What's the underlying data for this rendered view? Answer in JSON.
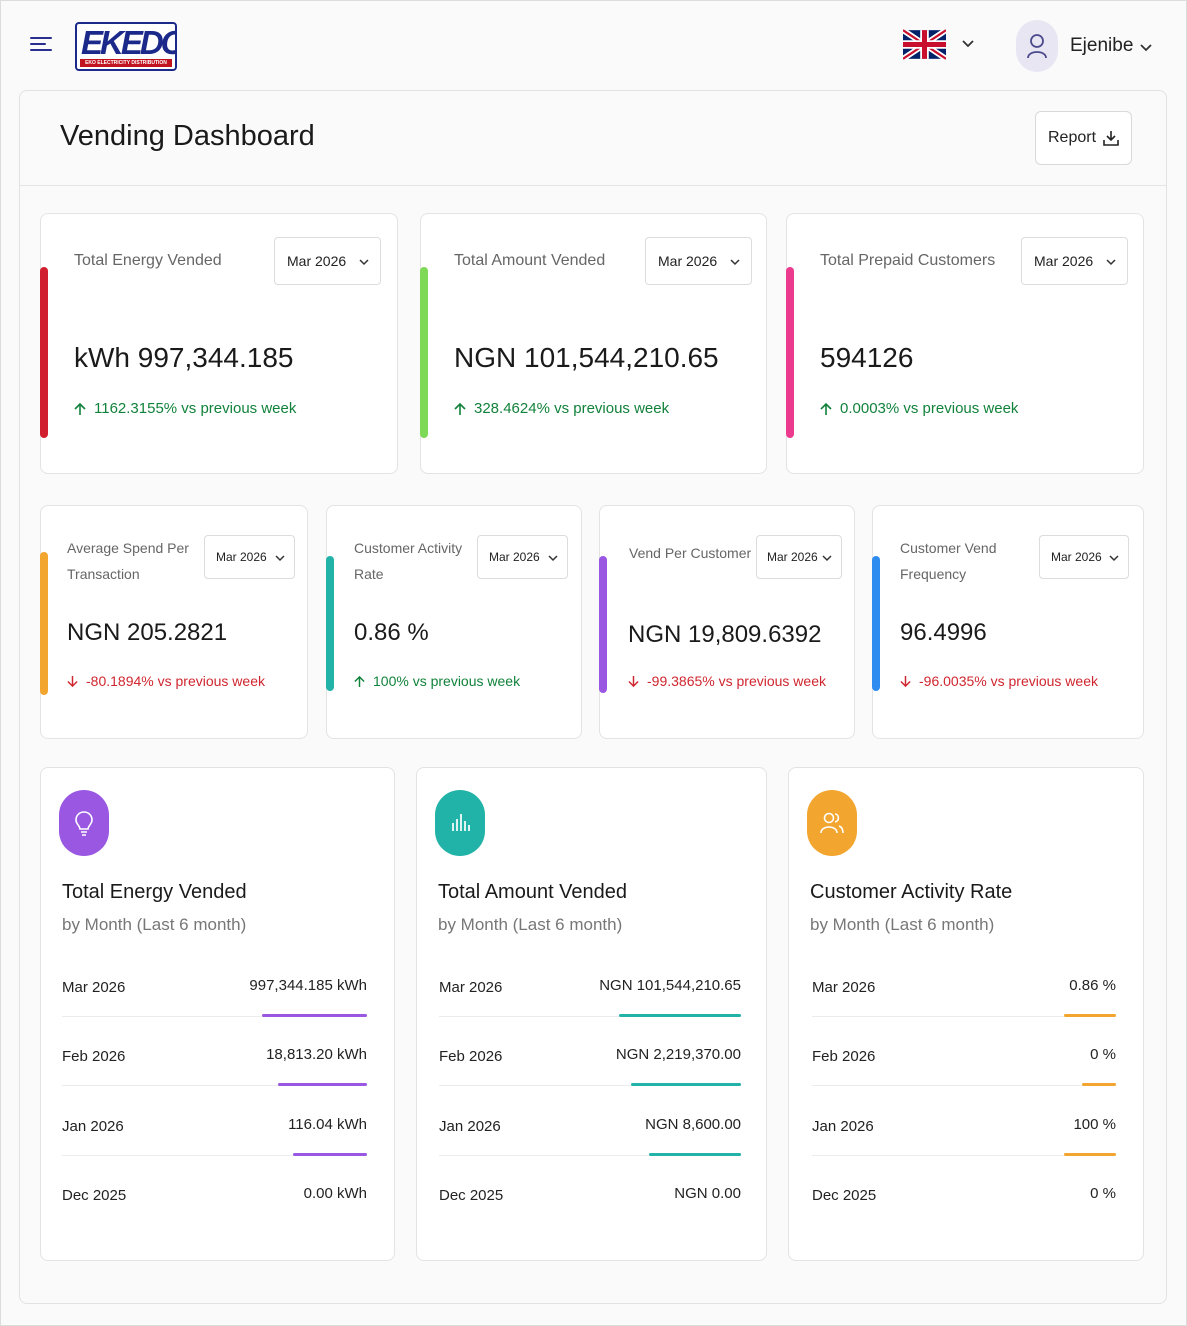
{
  "topbar": {
    "logo_text": "EKEDC",
    "logo_subtext": "EKO ELECTRICITY DISTRIBUTION PLC",
    "user_name": "Ejenibe",
    "language_flag": "uk-flag-icon"
  },
  "page": {
    "title": "Vending Dashboard",
    "report_label": "Report"
  },
  "top_cards": [
    {
      "label": "Total Energy Vended",
      "period": "Mar 2026",
      "value": "kWh 997,344.185",
      "delta": "1162.3155% vs previous week",
      "direction": "up",
      "accent": "#d01f2e"
    },
    {
      "label": "Total Amount Vended",
      "period": "Mar 2026",
      "value": "NGN 101,544,210.65",
      "delta": "328.4624% vs previous week",
      "direction": "up",
      "accent": "#7ed957"
    },
    {
      "label": "Total Prepaid Customers",
      "period": "Mar 2026",
      "value": "594126",
      "delta": "0.0003% vs previous week",
      "direction": "up",
      "accent": "#ec3b8e"
    }
  ],
  "mid_cards": [
    {
      "label_line1": "Average Spend Per",
      "label_line2": "Transaction",
      "period": "Mar 2026",
      "value": "NGN 205.2821",
      "delta": "-80.1894% vs previous week",
      "direction": "down",
      "accent": "#f2a52f"
    },
    {
      "label_line1": "Customer Activity",
      "label_line2": "Rate",
      "period": "Mar 2026",
      "value": "0.86 %",
      "delta": "100% vs previous week",
      "direction": "up",
      "accent": "#21b3a8"
    },
    {
      "label_line1": "Vend Per Customer",
      "label_line2": "",
      "period": "Mar 2026",
      "value": "NGN 19,809.6392",
      "delta": "-99.3865% vs previous week",
      "direction": "down",
      "accent": "#9a58e2"
    },
    {
      "label_line1": "Customer Vend",
      "label_line2": "Frequency",
      "period": "Mar 2026",
      "value": "96.4996",
      "delta": "-96.0035% vs previous week",
      "direction": "down",
      "accent": "#2e8cf0"
    }
  ],
  "breakdowns": [
    {
      "title": "Total Energy Vended",
      "subtitle": "by Month (Last 6 month)",
      "icon": "lightbulb-icon",
      "color": "#9a58e2",
      "rows": [
        {
          "month": "Mar 2026",
          "value": "997,344.185 kWh",
          "bar_fraction": 1.0
        },
        {
          "month": "Feb 2026",
          "value": "18,813.20 kWh",
          "bar_fraction": 0.85
        },
        {
          "month": "Jan 2026",
          "value": "116.04 kWh",
          "bar_fraction": 0.7
        },
        {
          "month": "Dec 2025",
          "value": "0.00 kWh",
          "bar_fraction": 0
        }
      ]
    },
    {
      "title": "Total Amount Vended",
      "subtitle": "by Month (Last 6 month)",
      "icon": "bar-chart-icon",
      "color": "#21b3a8",
      "rows": [
        {
          "month": "Mar 2026",
          "value": "NGN 101,544,210.65",
          "bar_fraction": 1.0
        },
        {
          "month": "Feb 2026",
          "value": "NGN 2,219,370.00",
          "bar_fraction": 0.9
        },
        {
          "month": "Jan 2026",
          "value": "NGN 8,600.00",
          "bar_fraction": 0.75
        },
        {
          "month": "Dec 2025",
          "value": "NGN 0.00",
          "bar_fraction": 0
        }
      ]
    },
    {
      "title": "Customer Activity Rate",
      "subtitle": "by Month (Last 6 month)",
      "icon": "users-icon",
      "color": "#f2a52f",
      "rows": [
        {
          "month": "Mar 2026",
          "value": "0.86 %",
          "bar_fraction": 1.0
        },
        {
          "month": "Feb 2026",
          "value": "0 %",
          "bar_fraction": 0.65
        },
        {
          "month": "Jan 2026",
          "value": "100 %",
          "bar_fraction": 1.0
        },
        {
          "month": "Dec 2025",
          "value": "0 %",
          "bar_fraction": 0
        }
      ]
    }
  ]
}
